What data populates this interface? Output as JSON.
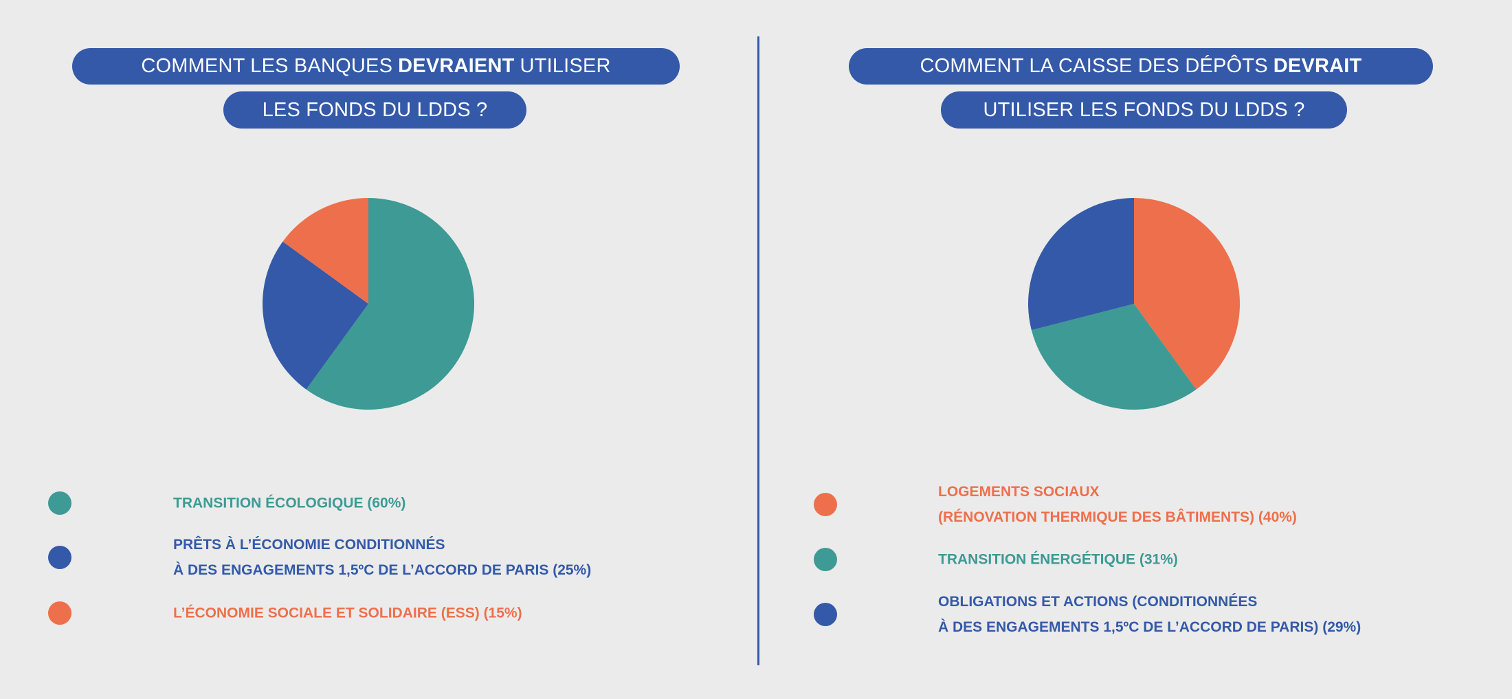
{
  "colors": {
    "teal": "#3d9a94",
    "blue": "#3459a8",
    "orange": "#ee6f4c",
    "background": "#ebebeb"
  },
  "chart_data": [
    {
      "type": "pie",
      "title_parts": {
        "line1_pre": "COMMENT LES BANQUES",
        "line1_bold": "DEVRAIENT",
        "line1_post": "UTILISER",
        "line2": "LES FONDS DU LDDS ?"
      },
      "slices": [
        {
          "label_lines": [
            "TRANSITION ÉCOLOGIQUE"
          ],
          "pct_label": "(60%)",
          "value": 60,
          "color": "#3d9a94"
        },
        {
          "label_lines": [
            "PRÊTS À L’ÉCONOMIE CONDITIONNÉS",
            "À DES ENGAGEMENTS 1,5ºC DE L’ACCORD DE PARIS"
          ],
          "pct_label": "(25%)",
          "value": 25,
          "color": "#3459a8"
        },
        {
          "label_lines": [
            "L’ÉCONOMIE SOCIALE ET SOLIDAIRE (ESS)"
          ],
          "pct_label": "(15%)",
          "value": 15,
          "color": "#ee6f4c"
        }
      ],
      "legend_placement": "bottom"
    },
    {
      "type": "pie",
      "title_parts": {
        "line1_pre": "COMMENT LA CAISSE DES DÉPÔTS",
        "line1_bold": "DEVRAIT",
        "line1_post": "",
        "line2": "UTILISER LES FONDS DU LDDS ?"
      },
      "slices": [
        {
          "label_lines": [
            "LOGEMENTS SOCIAUX",
            "(RÉNOVATION THERMIQUE DES BÂTIMENTS)"
          ],
          "pct_label": "(40%)",
          "value": 40,
          "color": "#ee6f4c"
        },
        {
          "label_lines": [
            "TRANSITION ÉNERGÉTIQUE"
          ],
          "pct_label": "(31%)",
          "value": 31,
          "color": "#3d9a94"
        },
        {
          "label_lines": [
            "OBLIGATIONS ET ACTIONS (CONDITIONNÉES",
            "À DES ENGAGEMENTS 1,5ºC DE L’ACCORD DE PARIS)"
          ],
          "pct_label": "(29%)",
          "value": 29,
          "color": "#3459a8"
        }
      ],
      "legend_placement": "bottom"
    }
  ]
}
